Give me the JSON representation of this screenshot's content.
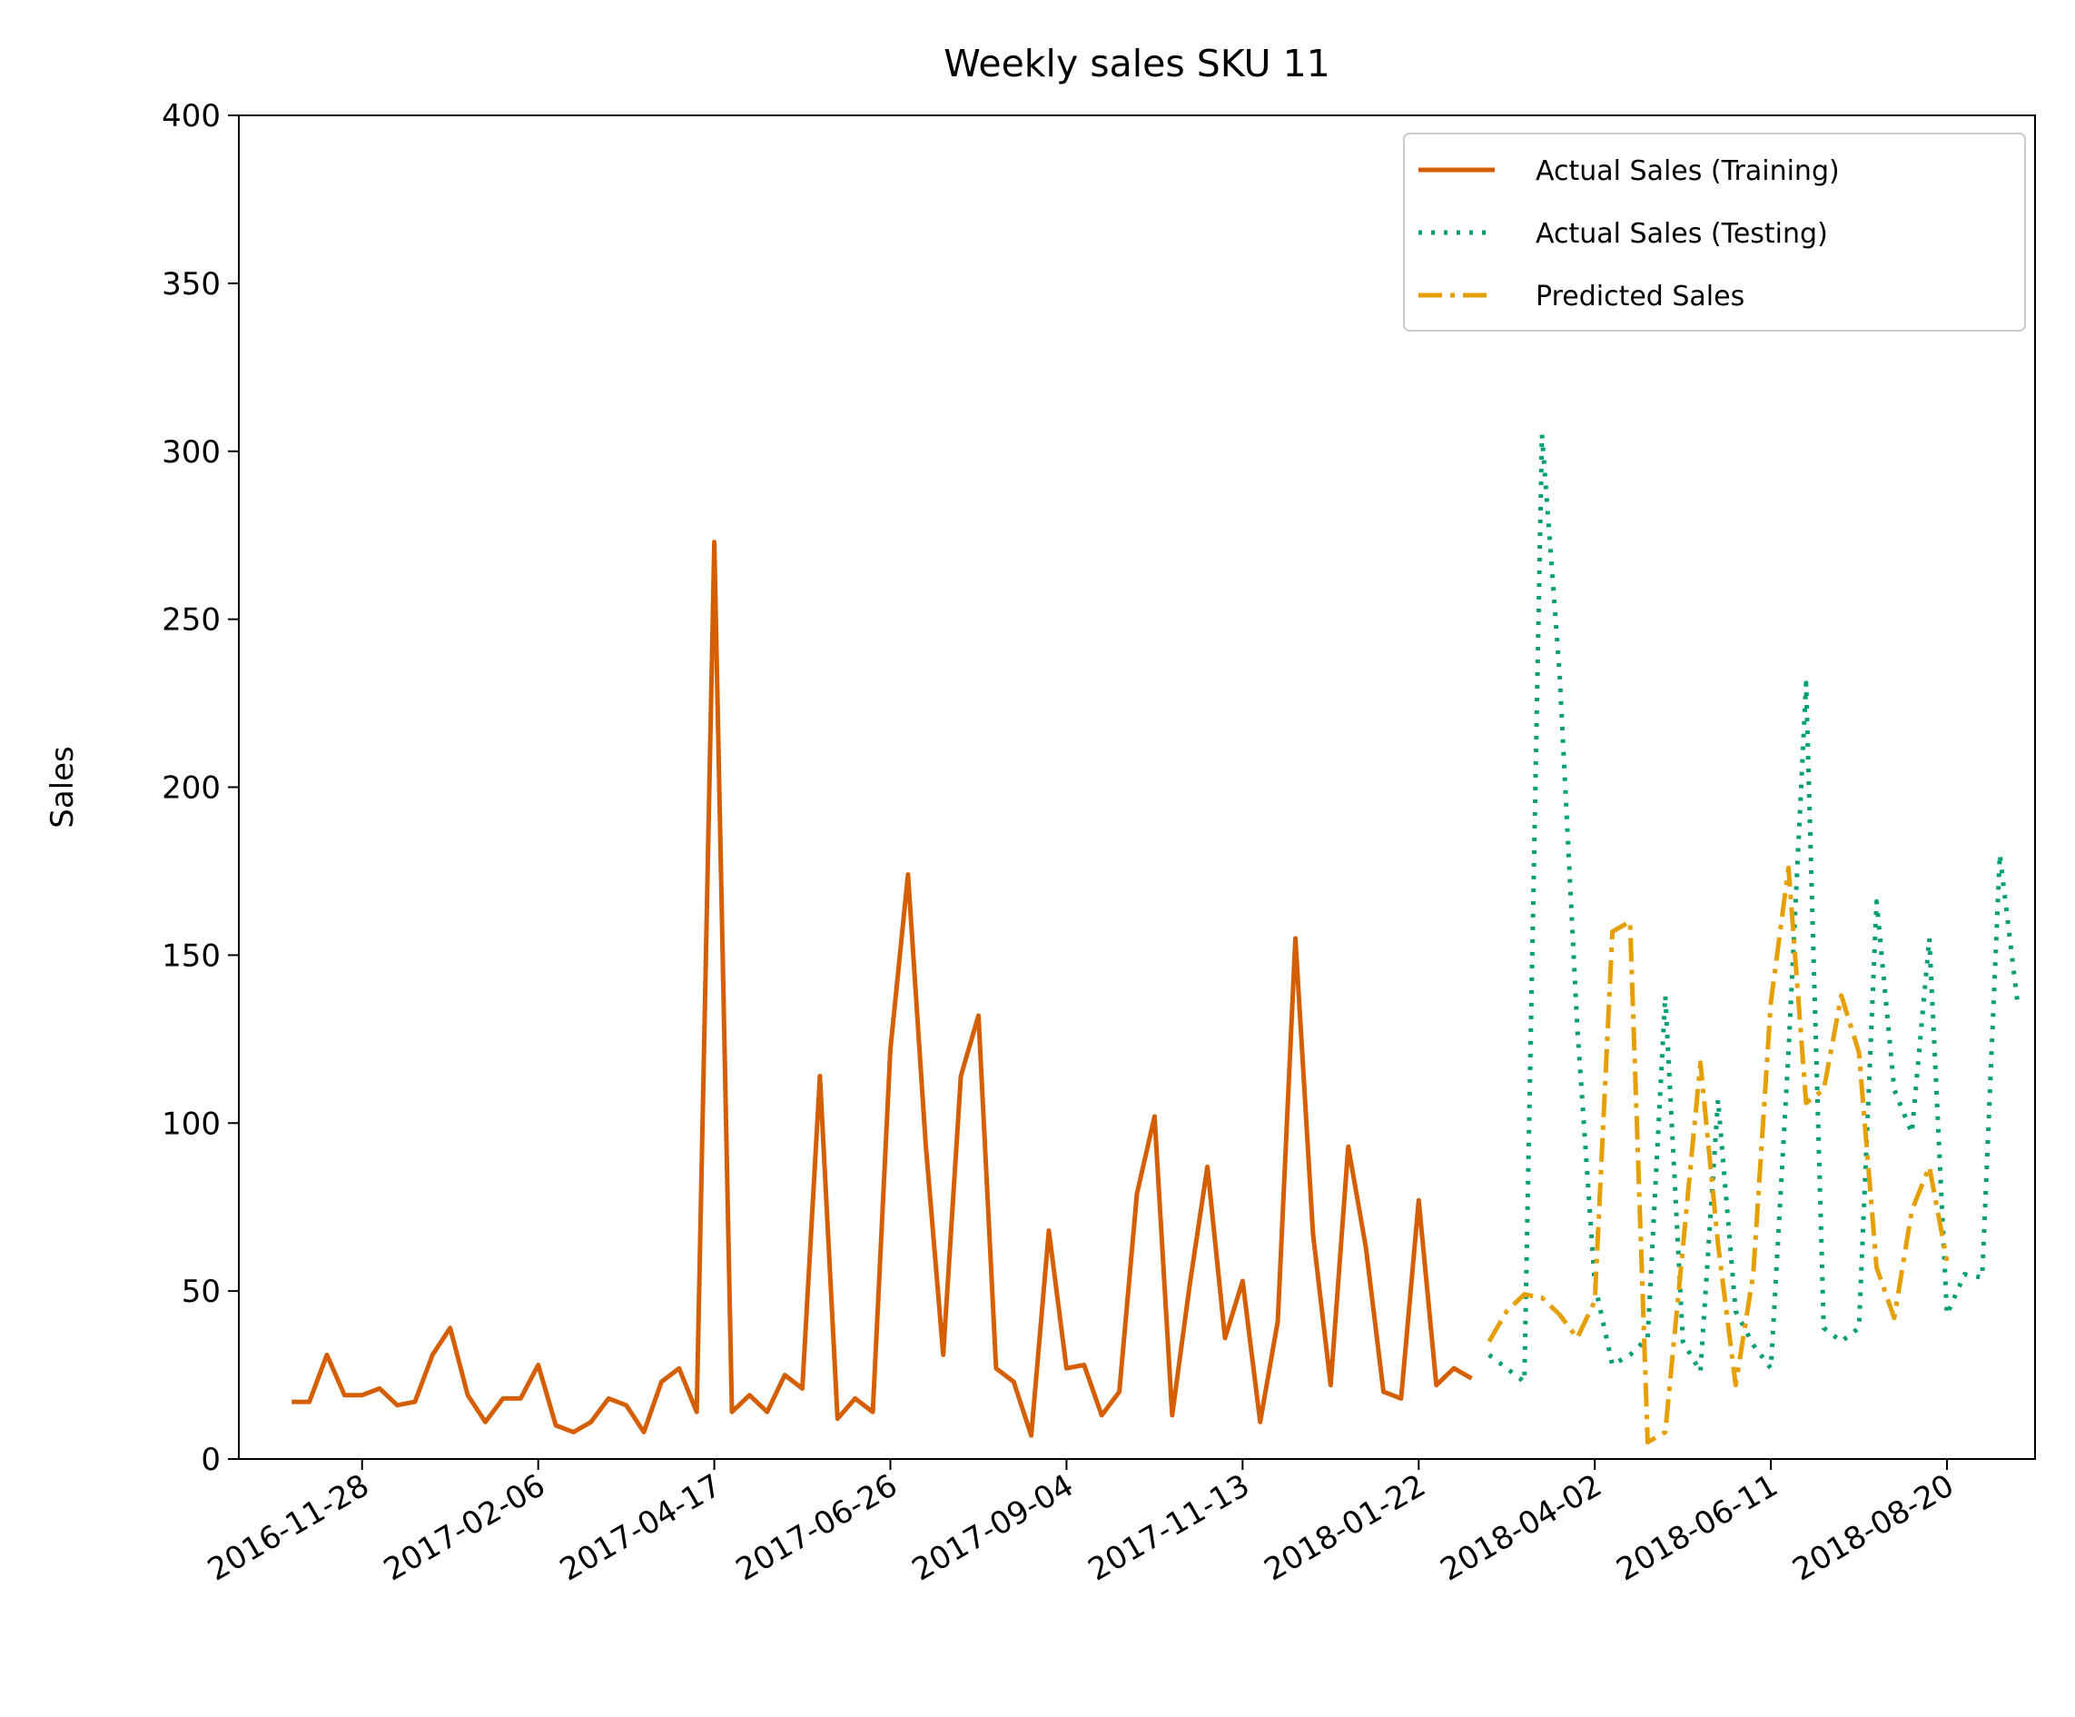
{
  "chart_data": {
    "type": "line",
    "title": "Weekly sales SKU 11",
    "xlabel": "",
    "ylabel": "Sales",
    "ylim": [
      0,
      400
    ],
    "xlim": [
      "2016-10-10",
      "2018-09-24"
    ],
    "yticks": [
      0,
      50,
      100,
      150,
      200,
      250,
      300,
      350,
      400
    ],
    "xticks": [
      "2016-11-28",
      "2017-02-06",
      "2017-04-17",
      "2017-06-26",
      "2017-09-04",
      "2017-11-13",
      "2018-01-22",
      "2018-04-02",
      "2018-06-11",
      "2018-08-20"
    ],
    "grid": false,
    "legend_position": "upper right",
    "colors": {
      "training": "#d55e00",
      "testing": "#009e73",
      "predicted": "#e69f00"
    },
    "series": [
      {
        "name": "Actual Sales (Training)",
        "line_style": "solid",
        "start_date": "2016-10-31",
        "interval_days": 7,
        "values": [
          17,
          17,
          31,
          19,
          19,
          21,
          16,
          17,
          31,
          39,
          19,
          11,
          18,
          18,
          28,
          10,
          8,
          11,
          18,
          16,
          8,
          23,
          27,
          14,
          273,
          14,
          19,
          14,
          25,
          21,
          114,
          12,
          18,
          14,
          122,
          174,
          94,
          31,
          114,
          132,
          27,
          23,
          7,
          68,
          27,
          28,
          13,
          20,
          79,
          102,
          13,
          52,
          87,
          36,
          53,
          11,
          41,
          155,
          67,
          22,
          93,
          63,
          20,
          18,
          77,
          22,
          27,
          24
        ]
      },
      {
        "name": "Actual Sales (Testing)",
        "line_style": "dotted",
        "start_date": "2018-02-19",
        "interval_days": 7,
        "values": [
          31,
          27,
          23,
          305,
          234,
          129,
          52,
          28,
          31,
          36,
          138,
          35,
          26,
          107,
          44,
          34,
          27,
          121,
          231,
          39,
          35,
          39,
          166,
          110,
          97,
          155,
          43,
          55,
          54,
          180,
          136
        ]
      },
      {
        "name": "Predicted Sales",
        "line_style": "dashdot",
        "start_date": "2018-02-19",
        "interval_days": 7,
        "values": [
          35,
          44,
          49,
          48,
          43,
          36,
          47,
          157,
          160,
          5,
          8,
          63,
          118,
          64,
          22,
          55,
          136,
          176,
          106,
          110,
          138,
          121,
          57,
          42,
          74,
          87,
          59
        ]
      }
    ]
  }
}
